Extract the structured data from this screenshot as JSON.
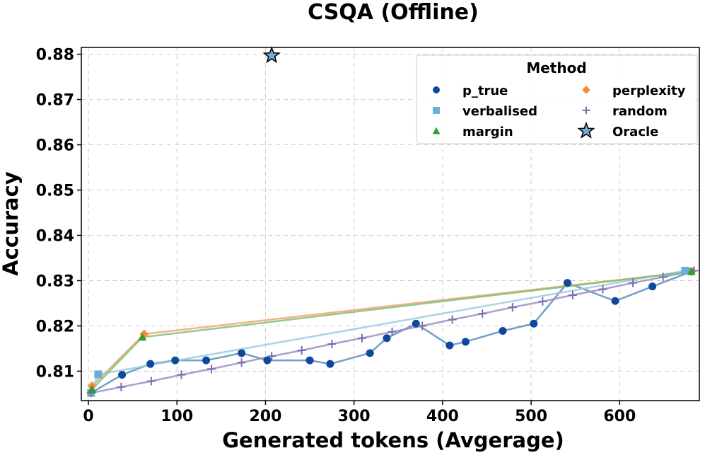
{
  "chart_data": {
    "type": "line",
    "title": "CSQA (Offline)",
    "xlabel": "Generated tokens (Avgerage)",
    "ylabel": "Accuracy",
    "xlim": [
      -8,
      690
    ],
    "ylim": [
      0.8035,
      0.8815
    ],
    "xticks": [
      0,
      100,
      200,
      300,
      400,
      500,
      600
    ],
    "yticks": [
      0.81,
      0.82,
      0.83,
      0.84,
      0.85,
      0.86,
      0.87,
      0.88
    ],
    "xtick_labels": [
      "0",
      "100",
      "200",
      "300",
      "400",
      "500",
      "600"
    ],
    "ytick_labels": [
      "0.81",
      "0.82",
      "0.83",
      "0.84",
      "0.85",
      "0.86",
      "0.87",
      "0.88"
    ],
    "grid": true,
    "legend": {
      "title": "Method",
      "position": "top-right",
      "entries": [
        "p_true",
        "perplexity",
        "verbalised",
        "random",
        "margin",
        "Oracle"
      ]
    },
    "series": [
      {
        "name": "p_true",
        "marker": "circle",
        "color": "#0d4a9c",
        "line_color": "#5b8ec2",
        "x": [
          3,
          38,
          70,
          98,
          133,
          173,
          202,
          250,
          273,
          318,
          337,
          370,
          408,
          426,
          468,
          503,
          541,
          595,
          637,
          681
        ],
        "y": [
          0.8052,
          0.8092,
          0.8116,
          0.8124,
          0.8124,
          0.814,
          0.8124,
          0.8124,
          0.8116,
          0.814,
          0.8173,
          0.8205,
          0.8157,
          0.8165,
          0.8189,
          0.8205,
          0.8295,
          0.8255,
          0.8287,
          0.832
        ]
      },
      {
        "name": "perplexity",
        "marker": "diamond",
        "color": "#f28e3b",
        "line_color": "#f2a56b",
        "x": [
          4,
          63,
          681
        ],
        "y": [
          0.8067,
          0.8182,
          0.832
        ]
      },
      {
        "name": "verbalised",
        "marker": "square",
        "color": "#6baed6",
        "line_color": "#9ecae1",
        "x": [
          3,
          11,
          674
        ],
        "y": [
          0.8052,
          0.8093,
          0.8322
        ]
      },
      {
        "name": "random",
        "marker": "plus",
        "color": "#7b6bb0",
        "line_color": "#9a8dc6",
        "x": [
          3,
          37,
          71,
          105,
          139,
          173,
          207,
          241,
          275,
          309,
          343,
          377,
          411,
          445,
          479,
          513,
          547,
          581,
          615,
          649,
          684
        ],
        "y": [
          0.8052,
          0.8065,
          0.8078,
          0.8092,
          0.8105,
          0.8119,
          0.8133,
          0.8146,
          0.816,
          0.8173,
          0.8187,
          0.82,
          0.8214,
          0.8227,
          0.8241,
          0.8254,
          0.8268,
          0.8281,
          0.8295,
          0.8308,
          0.8322
        ]
      },
      {
        "name": "margin",
        "marker": "triangle",
        "color": "#2ca02c",
        "line_color": "#7cc07a",
        "x": [
          4,
          61,
          681
        ],
        "y": [
          0.806,
          0.8175,
          0.832
        ]
      },
      {
        "name": "Oracle",
        "marker": "star",
        "color": "#6baed6",
        "x": [
          207
        ],
        "y": [
          0.8797
        ]
      }
    ]
  }
}
